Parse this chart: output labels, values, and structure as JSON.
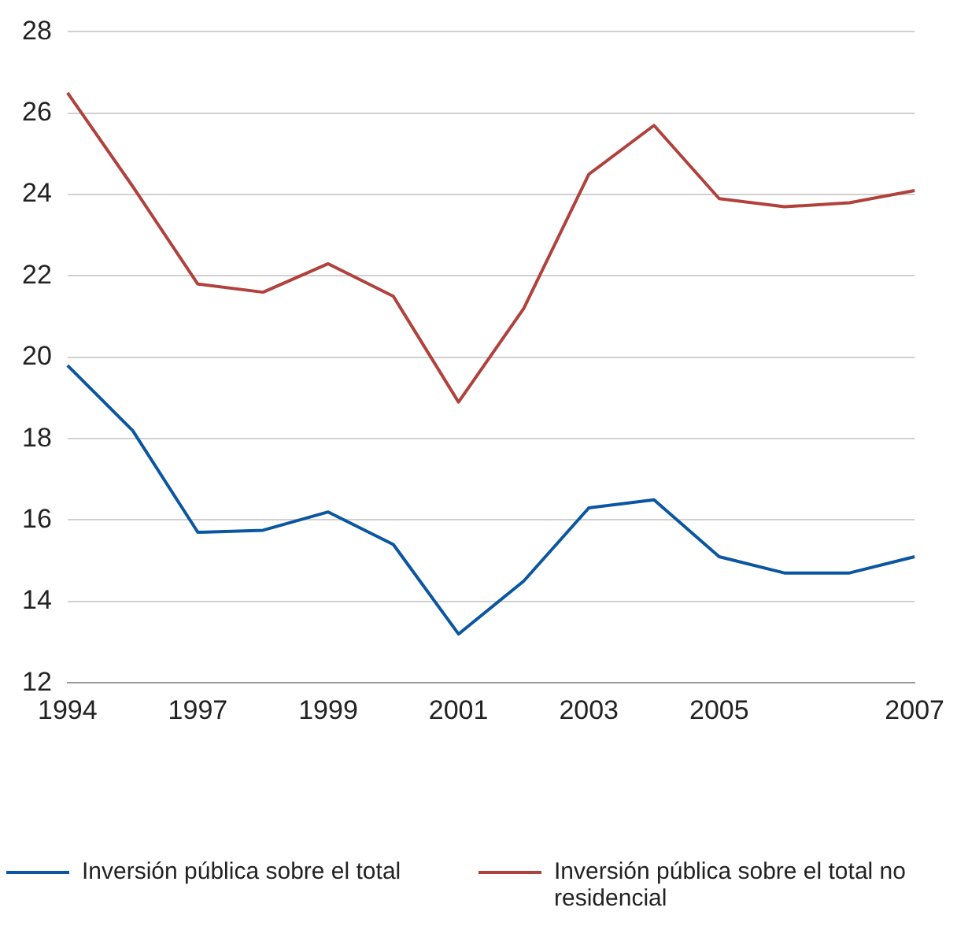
{
  "chart_data": {
    "type": "line",
    "categories": [
      "1994",
      null,
      "1997",
      null,
      "1999",
      null,
      "2001",
      null,
      "2003",
      null,
      "2005",
      null,
      null,
      "2007"
    ],
    "series": [
      {
        "name": "Inversión pública sobre el total",
        "color": "#0b56a0",
        "values": [
          19.8,
          18.2,
          15.7,
          15.75,
          16.2,
          15.4,
          13.2,
          14.5,
          16.3,
          16.5,
          15.1,
          14.7,
          14.7,
          15.1
        ]
      },
      {
        "name": "Inversión pública sobre el total no residencial",
        "color": "#b0413c",
        "values": [
          26.5,
          24.2,
          21.8,
          21.6,
          22.3,
          21.5,
          18.9,
          21.2,
          24.5,
          25.7,
          23.9,
          23.7,
          23.8,
          24.1
        ]
      }
    ],
    "ylim": [
      12,
      28
    ],
    "yticks": [
      12,
      14,
      16,
      18,
      20,
      22,
      24,
      26,
      28
    ],
    "grid": "y",
    "legend": "bottom",
    "marker": "none",
    "line_style": "solid"
  }
}
